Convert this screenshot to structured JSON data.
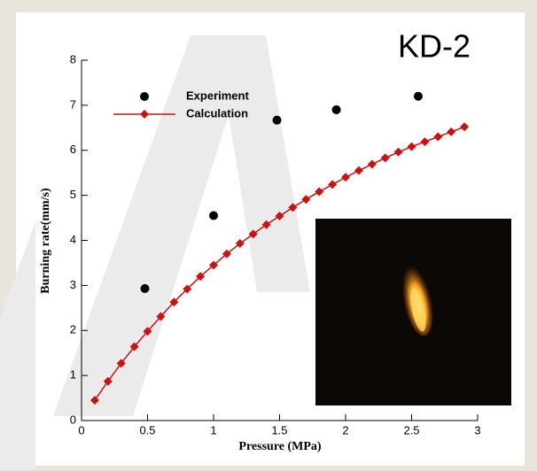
{
  "chart_data": {
    "type": "scatter-line",
    "title": "KD-2",
    "x_label": "Pressure (MPa)",
    "y_label": "Burning rate(mm/s)",
    "xlim": [
      0,
      3
    ],
    "xticks": [
      0,
      0.5,
      1,
      1.5,
      2,
      2.5,
      3
    ],
    "ylim": [
      0,
      8
    ],
    "yticks": [
      0,
      1,
      2,
      3,
      4,
      5,
      6,
      7,
      8
    ],
    "legend": "upper left",
    "series": [
      {
        "name": "Experiment",
        "color": "#000000",
        "mode": "markers",
        "x": [
          0.48,
          1.0,
          1.48,
          1.93,
          2.55
        ],
        "values": [
          2.93,
          4.55,
          6.67,
          6.9,
          7.2
        ]
      },
      {
        "name": "Calculation",
        "color": "#cc1111",
        "mode": "lines+markers",
        "x": [
          0.1,
          0.2,
          0.3,
          0.4,
          0.5,
          0.6,
          0.7,
          0.8,
          0.9,
          1.0,
          1.1,
          1.2,
          1.3,
          1.4,
          1.5,
          1.6,
          1.7,
          1.8,
          1.9,
          2.0,
          2.1,
          2.2,
          2.3,
          2.4,
          2.5,
          2.6,
          2.7,
          2.8,
          2.9
        ],
        "values": [
          0.45,
          0.87,
          1.27,
          1.64,
          1.98,
          2.31,
          2.63,
          2.92,
          3.2,
          3.45,
          3.7,
          3.93,
          4.14,
          4.35,
          4.54,
          4.73,
          4.91,
          5.08,
          5.24,
          5.4,
          5.55,
          5.69,
          5.83,
          5.96,
          6.08,
          6.19,
          6.3,
          6.41,
          6.52
        ]
      }
    ]
  }
}
